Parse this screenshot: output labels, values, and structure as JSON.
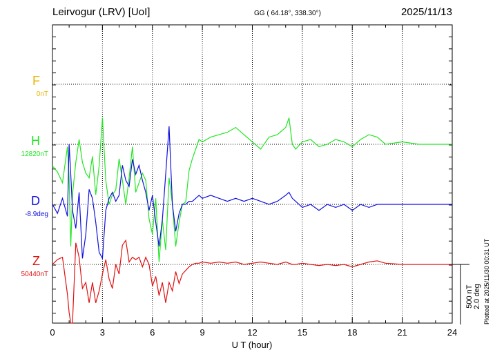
{
  "header": {
    "station": "Leirvogur (LRV)  [UoI]",
    "coords": "GG ( 64.18°, 338.30°)",
    "date": "2025/11/13"
  },
  "components": [
    {
      "letter": "F",
      "baseline": "0nT",
      "color": "#e8b400"
    },
    {
      "letter": "H",
      "baseline": "12820nT",
      "color": "#22e622"
    },
    {
      "letter": "D",
      "baseline": "-8.9deg",
      "color": "#1010e0"
    },
    {
      "letter": "Z",
      "baseline": "50440nT",
      "color": "#e01010"
    }
  ],
  "scale_bar": {
    "line1": "500 nT",
    "line2": "2.0 deg"
  },
  "plotted_note": "Plotted at 2025/11/30 00:31 UT",
  "chart_data": {
    "type": "line",
    "xlabel": "U T (hour)",
    "xlim": [
      0,
      24
    ],
    "x_ticks": [
      0,
      3,
      6,
      9,
      12,
      15,
      18,
      21,
      24
    ],
    "series": [
      {
        "name": "H",
        "color": "#22e622",
        "x": [
          0,
          0.3,
          0.6,
          0.9,
          1.0,
          1.1,
          1.2,
          1.4,
          1.6,
          1.8,
          2.0,
          2.2,
          2.4,
          2.6,
          2.8,
          3.0,
          3.2,
          3.4,
          3.6,
          3.8,
          4.0,
          4.2,
          4.4,
          4.6,
          4.8,
          5.0,
          5.2,
          5.4,
          5.6,
          5.8,
          6.0,
          6.2,
          6.4,
          6.6,
          6.8,
          7.0,
          7.2,
          7.4,
          7.6,
          7.8,
          8.0,
          8.2,
          8.4,
          8.6,
          8.8,
          9.0,
          9.5,
          10.0,
          10.5,
          11.0,
          11.5,
          12.0,
          12.5,
          13.0,
          13.5,
          14.0,
          14.2,
          14.4,
          14.6,
          15.0,
          15.5,
          16.0,
          16.5,
          17.0,
          17.5,
          18.0,
          18.5,
          19.0,
          19.5,
          20.0,
          21.0,
          22.0,
          23.0,
          24.0
        ],
        "y": [
          -180,
          -230,
          -320,
          -20,
          -280,
          -850,
          -420,
          -150,
          40,
          -150,
          -240,
          -280,
          -100,
          -420,
          -180,
          220,
          -300,
          -500,
          -420,
          -380,
          -120,
          -300,
          -500,
          -280,
          -20,
          -400,
          -320,
          -240,
          -300,
          -620,
          -750,
          -450,
          -980,
          -630,
          -880,
          -280,
          -500,
          -850,
          -650,
          -500,
          -480,
          -220,
          -120,
          -40,
          40,
          20,
          60,
          80,
          100,
          140,
          80,
          20,
          -40,
          60,
          80,
          140,
          220,
          0,
          -40,
          20,
          40,
          -20,
          0,
          40,
          20,
          -20,
          40,
          80,
          60,
          0,
          20,
          0,
          0,
          0
        ]
      },
      {
        "name": "D",
        "color": "#1010e0",
        "x": [
          0,
          0.3,
          0.6,
          0.9,
          1.0,
          1.1,
          1.2,
          1.4,
          1.6,
          1.8,
          2.0,
          2.2,
          2.4,
          2.6,
          2.8,
          3.0,
          3.2,
          3.4,
          3.6,
          3.8,
          4.0,
          4.2,
          4.4,
          4.6,
          4.8,
          5.0,
          5.2,
          5.4,
          5.6,
          5.8,
          6.0,
          6.2,
          6.4,
          6.6,
          6.8,
          7.0,
          7.2,
          7.4,
          7.6,
          7.8,
          8.0,
          8.2,
          8.4,
          8.6,
          8.8,
          9.0,
          9.5,
          10.0,
          10.5,
          11.0,
          11.5,
          12.0,
          12.5,
          13.0,
          13.5,
          14.0,
          14.2,
          14.4,
          14.6,
          15.0,
          15.5,
          16.0,
          16.5,
          17.0,
          17.5,
          18.0,
          18.5,
          19.0,
          19.5,
          20.0,
          21.0,
          22.0,
          23.0,
          24.0
        ],
        "y": [
          0,
          -0.3,
          0.2,
          -0.4,
          2.0,
          1.0,
          -0.2,
          -0.8,
          0.4,
          -1.8,
          -1.0,
          0.5,
          0.2,
          -0.6,
          -1.6,
          -1.8,
          -0.2,
          0.2,
          0.4,
          0.1,
          0.3,
          1.3,
          0.8,
          0.6,
          1.5,
          1.0,
          1.3,
          0.8,
          0.4,
          -0.2,
          0.3,
          -0.6,
          -1.4,
          -0.5,
          1.0,
          2.6,
          0.0,
          -0.9,
          -0.3,
          0.0,
          0.0,
          0.1,
          0.1,
          0.2,
          0.3,
          0.2,
          0.3,
          0.2,
          0.1,
          0.2,
          0.1,
          0.2,
          0.1,
          0.0,
          0.1,
          0.3,
          0.4,
          0.2,
          0.1,
          -0.1,
          0.0,
          -0.2,
          0.0,
          -0.1,
          0.0,
          -0.2,
          0.0,
          -0.1,
          0.0,
          0.0,
          0.0,
          0.0,
          0.0,
          0.0
        ]
      },
      {
        "name": "Z",
        "color": "#e01010",
        "x": [
          0,
          0.3,
          0.6,
          0.9,
          1.0,
          1.1,
          1.2,
          1.4,
          1.6,
          1.8,
          2.0,
          2.2,
          2.4,
          2.6,
          2.8,
          3.0,
          3.2,
          3.4,
          3.6,
          3.8,
          4.0,
          4.2,
          4.4,
          4.6,
          4.8,
          5.0,
          5.2,
          5.4,
          5.6,
          5.8,
          6.0,
          6.2,
          6.4,
          6.6,
          6.8,
          7.0,
          7.2,
          7.4,
          7.6,
          7.8,
          8.0,
          8.2,
          8.4,
          8.6,
          8.8,
          9.0,
          9.5,
          10.0,
          10.5,
          11.0,
          11.5,
          12.0,
          12.5,
          13.0,
          13.5,
          14.0,
          14.2,
          14.4,
          14.6,
          15.0,
          15.5,
          16.0,
          16.5,
          17.0,
          17.5,
          18.0,
          18.5,
          19.0,
          19.5,
          20.0,
          21.0,
          22.0,
          23.0,
          24.0
        ],
        "y": [
          0,
          40,
          60,
          -250,
          -400,
          -600,
          -520,
          180,
          60,
          -200,
          -150,
          -320,
          -150,
          -320,
          -220,
          -80,
          40,
          -120,
          -200,
          0,
          -80,
          160,
          200,
          20,
          60,
          40,
          60,
          -20,
          60,
          0,
          -180,
          -100,
          -260,
          -150,
          -320,
          -150,
          -220,
          -60,
          -160,
          -80,
          -50,
          -20,
          0,
          10,
          10,
          20,
          10,
          20,
          10,
          20,
          0,
          10,
          20,
          10,
          0,
          20,
          10,
          0,
          0,
          10,
          0,
          -10,
          0,
          -10,
          0,
          -20,
          0,
          20,
          30,
          10,
          0,
          0,
          0,
          0
        ]
      }
    ]
  }
}
